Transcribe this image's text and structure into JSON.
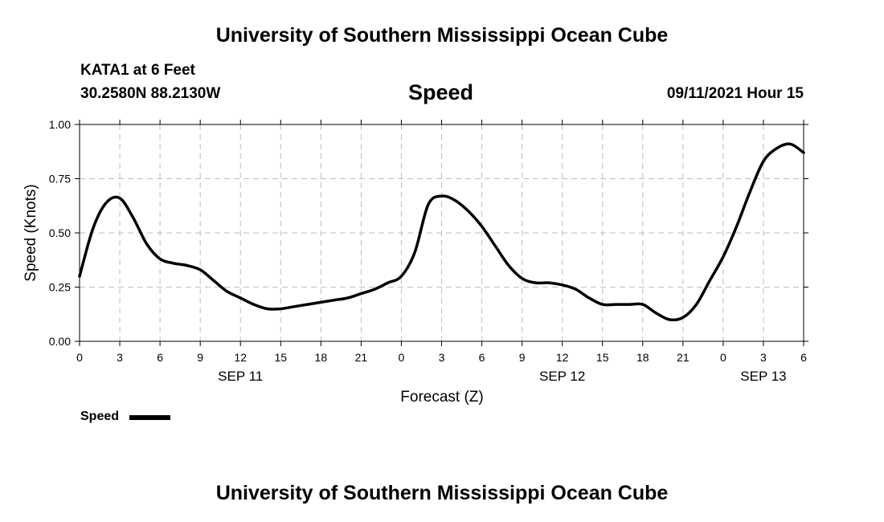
{
  "header": {
    "title_top": "University of Southern Mississippi Ocean Cube",
    "title_bottom": "University of Southern Mississippi Ocean Cube",
    "station": "KATA1 at 6 Feet",
    "coords": "30.2580N  88.2130W",
    "datetime": "09/11/2021 Hour 15"
  },
  "chart_data": {
    "type": "line",
    "title": "Speed",
    "xlabel": "Forecast (Z)",
    "ylabel": "Speed (Knots)",
    "ylim": [
      0,
      1
    ],
    "x_hours_range": [
      0,
      54
    ],
    "y_ticks": [
      "0.00",
      "0.25",
      "0.50",
      "0.75",
      "1.00"
    ],
    "x_ticks": [
      "0",
      "3",
      "6",
      "9",
      "12",
      "15",
      "18",
      "21",
      "0",
      "3",
      "6",
      "9",
      "12",
      "15",
      "18",
      "21",
      "0",
      "3",
      "6"
    ],
    "date_labels": [
      {
        "label": "SEP 11",
        "hour": 12
      },
      {
        "label": "SEP 12",
        "hour": 36
      },
      {
        "label": "SEP 13",
        "hour": 51
      }
    ],
    "grid": true,
    "legend_position": "bottom-left",
    "series": [
      {
        "name": "Speed",
        "color": "#000000",
        "x": [
          0,
          1,
          2,
          3,
          4,
          5,
          6,
          7,
          8,
          9,
          10,
          11,
          12,
          13,
          14,
          15,
          16,
          17,
          18,
          19,
          20,
          21,
          22,
          23,
          24,
          25,
          26,
          27,
          28,
          29,
          30,
          31,
          32,
          33,
          34,
          35,
          36,
          37,
          38,
          39,
          40,
          41,
          42,
          43,
          44,
          45,
          46,
          47,
          48,
          49,
          50,
          51,
          52,
          53,
          54
        ],
        "y": [
          0.3,
          0.52,
          0.64,
          0.66,
          0.57,
          0.45,
          0.38,
          0.36,
          0.35,
          0.33,
          0.28,
          0.23,
          0.2,
          0.17,
          0.15,
          0.15,
          0.16,
          0.17,
          0.18,
          0.19,
          0.2,
          0.22,
          0.24,
          0.27,
          0.3,
          0.41,
          0.63,
          0.67,
          0.65,
          0.6,
          0.53,
          0.44,
          0.35,
          0.29,
          0.27,
          0.27,
          0.26,
          0.24,
          0.2,
          0.17,
          0.17,
          0.17,
          0.17,
          0.13,
          0.1,
          0.11,
          0.17,
          0.28,
          0.39,
          0.53,
          0.69,
          0.83,
          0.89,
          0.91,
          0.87
        ]
      }
    ]
  }
}
